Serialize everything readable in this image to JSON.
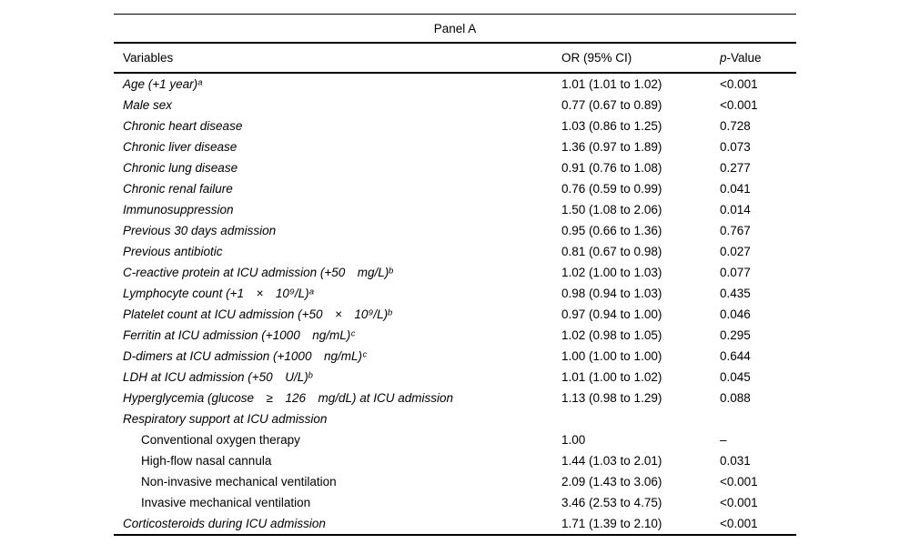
{
  "panel": {
    "title": "Panel A"
  },
  "header": {
    "variables": "Variables",
    "or": "OR (95% CI)",
    "p_italic": "p",
    "p_rest": "-Value"
  },
  "rows": [
    {
      "variable": "Age (+1 year)ᵃ",
      "or": "1.01 (1.01 to 1.02)",
      "p": "<0.001"
    },
    {
      "variable": "Male sex",
      "or": "0.77 (0.67 to 0.89)",
      "p": "<0.001"
    },
    {
      "variable": "Chronic heart disease",
      "or": "1.03 (0.86 to 1.25)",
      "p": "0.728"
    },
    {
      "variable": "Chronic liver disease",
      "or": "1.36 (0.97 to 1.89)",
      "p": "0.073"
    },
    {
      "variable": "Chronic lung disease",
      "or": "0.91 (0.76 to 1.08)",
      "p": "0.277"
    },
    {
      "variable": "Chronic renal failure",
      "or": "0.76 (0.59 to 0.99)",
      "p": "0.041"
    },
    {
      "variable": "Immunosuppression",
      "or": "1.50 (1.08 to 2.06)",
      "p": "0.014"
    },
    {
      "variable": "Previous 30 days admission",
      "or": "0.95 (0.66 to 1.36)",
      "p": "0.767"
    },
    {
      "variable": "Previous antibiotic",
      "or": "0.81 (0.67 to 0.98)",
      "p": "0.027"
    },
    {
      "variable": "C-reactive protein at ICU admission (+50 mg/L)ᵇ",
      "or": "1.02 (1.00 to 1.03)",
      "p": "0.077"
    },
    {
      "variable": "Lymphocyte count (+1 × 10⁹/L)ᵃ",
      "or": "0.98 (0.94 to 1.03)",
      "p": "0.435"
    },
    {
      "variable": "Platelet count at ICU admission (+50 × 10⁹/L)ᵇ",
      "or": "0.97 (0.94 to 1.00)",
      "p": "0.046"
    },
    {
      "variable": "Ferritin at ICU admission (+1000 ng/mL)ᶜ",
      "or": "1.02 (0.98 to 1.05)",
      "p": "0.295"
    },
    {
      "variable": "D-dimers at ICU admission (+1000 ng/mL)ᶜ",
      "or": "1.00 (1.00 to 1.00)",
      "p": "0.644"
    },
    {
      "variable": "LDH at ICU admission (+50 U/L)ᵇ",
      "or": "1.01 (1.00 to 1.02)",
      "p": "0.045"
    },
    {
      "variable": "Hyperglycemia (glucose ≥ 126 mg/dL) at ICU admission",
      "or": "1.13 (0.98 to 1.29)",
      "p": "0.088"
    },
    {
      "variable": "Respiratory support at ICU admission",
      "or": "",
      "p": ""
    },
    {
      "variable": "Conventional oxygen therapy",
      "or": "1.00",
      "p": "–"
    },
    {
      "variable": "High-flow nasal cannula",
      "or": "1.44 (1.03 to 2.01)",
      "p": "0.031"
    },
    {
      "variable": "Non-invasive mechanical ventilation",
      "or": "2.09 (1.43 to 3.06)",
      "p": "<0.001"
    },
    {
      "variable": "Invasive mechanical ventilation",
      "or": "3.46 (2.53 to 4.75)",
      "p": "<0.001"
    },
    {
      "variable": "Corticosteroids during ICU admission",
      "or": "1.71 (1.39 to 2.10)",
      "p": "<0.001"
    }
  ]
}
